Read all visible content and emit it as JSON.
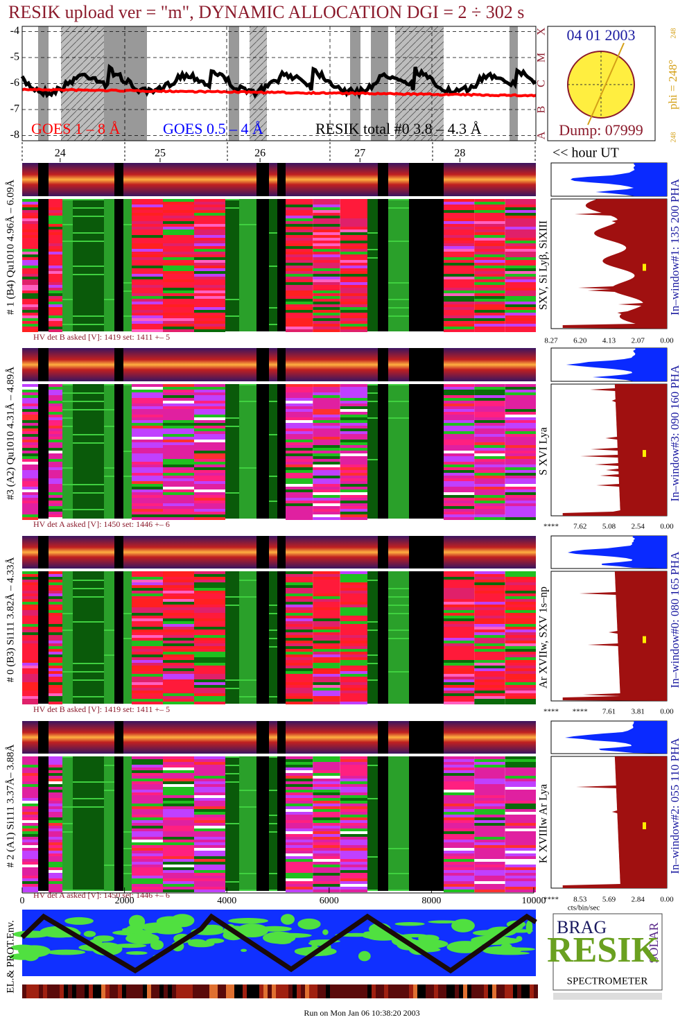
{
  "title": "RESIK upload ver = \"m\", DYNAMIC ALLOCATION  DGI =   2 ÷ 302 s",
  "light_curve": {
    "yticks": [
      -4,
      -5,
      -6,
      -7,
      -8
    ],
    "ylim": [
      -8.2,
      -3.8
    ],
    "class_letters": [
      "A",
      "B",
      "C",
      "M",
      "X"
    ],
    "legend": [
      {
        "name": "GOES 1 – 8 Å",
        "color": "#ff0000"
      },
      {
        "name": "GOES 0.5 – 4 Å",
        "color": "#0000ff"
      },
      {
        "name": "RESIK total #0  3.8 – 4.3 Å",
        "color": "#000000"
      }
    ]
  },
  "sun": {
    "date": "04 01 2003",
    "phi": "phi = 248°",
    "phi_min": "248",
    "phi_max": "248",
    "dump": "Dump: 07999"
  },
  "time_axis": {
    "xlim": [
      23.62,
      28.76
    ],
    "xticks": [
      24,
      25,
      26,
      27,
      28
    ],
    "unit_label": "<< hour UT"
  },
  "panels": [
    {
      "left_label": "# 1 (B4) Qu1010 4.96Å – 6.09Å",
      "line_label": "SXV, Si Lyβ, SiXIII",
      "right_label": "In–window#1:  135 200 PHA",
      "hv": "HV det B asked [V]:  1419 set:  1411  +–    5",
      "hist_labels": [
        "8.27",
        "6.20",
        "4.13",
        "2.07",
        "0.00"
      ]
    },
    {
      "left_label": "#3 (A2) Qu1010  4.31Å – 4.89Å",
      "line_label": "S XVI Lya",
      "right_label": "In–window#3:  090 160 PHA",
      "hv": "HV det A asked [V]:  1450 set:  1446  +–    6",
      "hist_labels": [
        "****",
        "7.62",
        "5.08",
        "2.54",
        "0.00"
      ]
    },
    {
      "left_label": "# 0 (B3) Si111  3.82Å – 4.33Å",
      "line_label": "Ar XVIIw,  SXV  1s–np",
      "right_label": "In–window#0:  080 165 PHA",
      "hv": "HV det B asked [V]:  1419 set:  1411  +–    5",
      "hist_labels": [
        "****",
        "****",
        "7.61",
        "3.81",
        "0.00"
      ]
    },
    {
      "left_label": "# 2 (A1) Si111  3.37Å– 3.88Å",
      "line_label": "K XVIIIw  Ar Lya",
      "right_label": "In–window#2:  055 110 PHA",
      "hv": "HV det A asked [V]:  1450 set:  1446  +–    6",
      "hist_labels": [
        "****",
        "8.53",
        "5.69",
        "2.84",
        "0.00"
      ]
    }
  ],
  "bin_axis": {
    "xlim": [
      0,
      10000
    ],
    "xticks": [
      0,
      2000,
      4000,
      6000,
      8000,
      10000
    ],
    "hist_unit": "cts/bin/sec"
  },
  "environment": {
    "label": "EL.& PROT.Env."
  },
  "logo": {
    "top": "BRAG",
    "side": "SOLAR",
    "name": "RESIK",
    "caption": "SPECTROMETER"
  },
  "footer": "Run on Mon Jan 06 10:38:20 2003"
}
